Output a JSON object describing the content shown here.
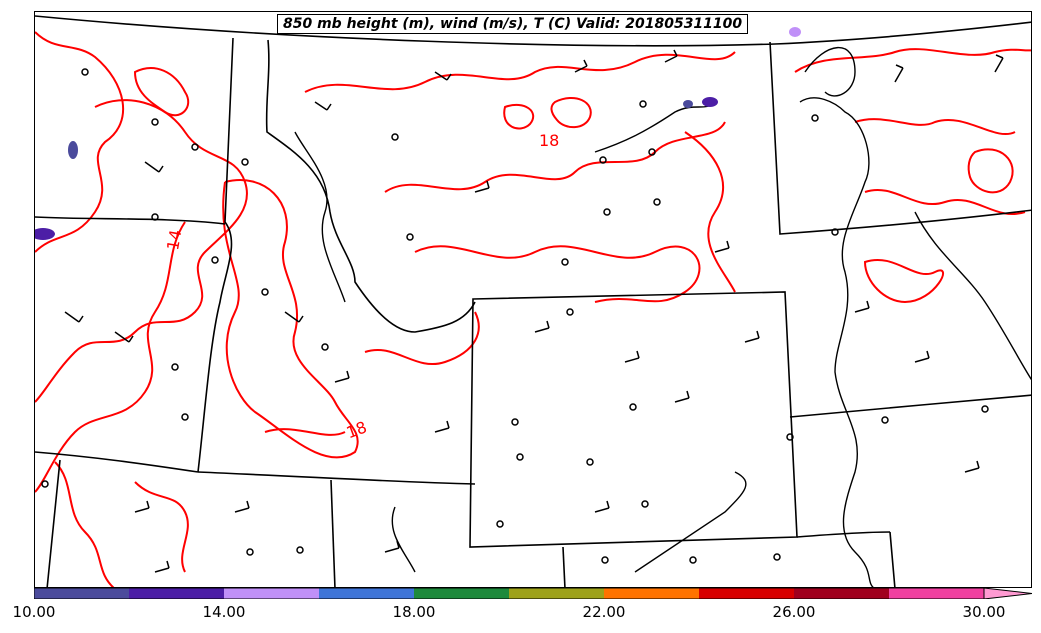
{
  "title": "850 mb height (m), wind (m/s), T (C) Valid: 201805311100",
  "contour_labels": [
    "18",
    "14",
    "18"
  ],
  "colorbar": {
    "colors": [
      "#4b4b9c",
      "#4c1ea6",
      "#c090f8",
      "#3f75d8",
      "#1e8a3c",
      "#9ea21a",
      "#ff7300",
      "#d80000",
      "#a0001e",
      "#f040a0",
      "#ff9ad2"
    ],
    "tick_labels": [
      "10.00",
      "14.00",
      "18.00",
      "22.00",
      "26.00",
      "30.00"
    ]
  },
  "colors": {
    "temperature_contour": "#ff0000",
    "boundaries": "#000000"
  }
}
